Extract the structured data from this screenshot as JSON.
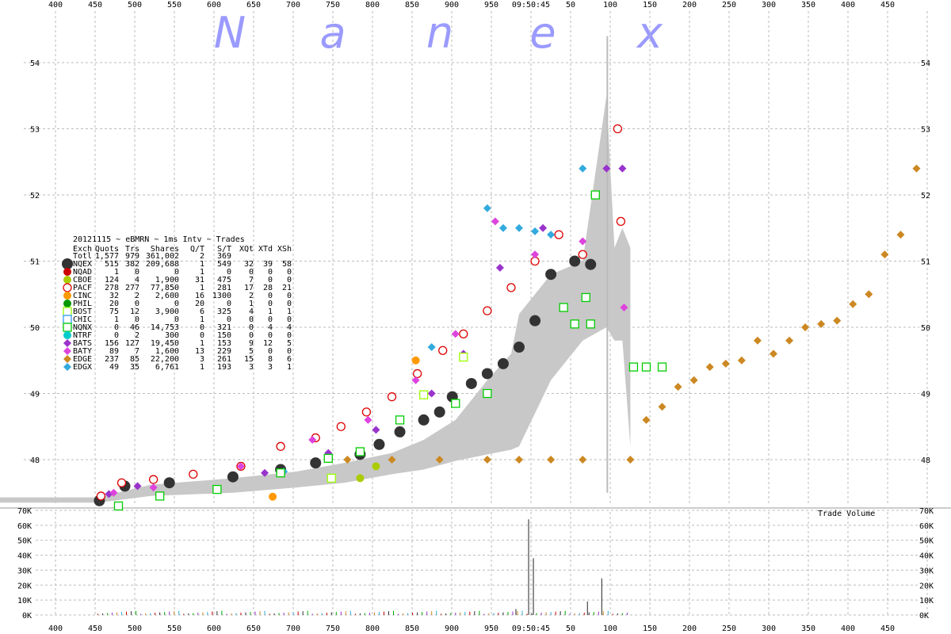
{
  "watermark": [
    "N",
    "a",
    "n",
    "e",
    "x"
  ],
  "chart_data": {
    "type": "scatter",
    "title_line": "20121115 ~ eBMRN ~ 1ms Intv ~ Trades",
    "time_axis": {
      "center_label": "09:50:45",
      "left_ticks": [
        "400",
        "450",
        "500",
        "550",
        "600",
        "650",
        "700",
        "750",
        "800",
        "850",
        "900",
        "950"
      ],
      "right_ticks": [
        "50",
        "100",
        "150",
        "200",
        "250",
        "300",
        "350",
        "400",
        "450"
      ]
    },
    "price_axis": {
      "ticks": [
        "48",
        "49",
        "50",
        "51",
        "52",
        "53",
        "54"
      ],
      "ylim": [
        47.4,
        54.5
      ]
    },
    "volume_axis": {
      "label": "Trade Volume",
      "ticks": [
        "0K",
        "10K",
        "20K",
        "30K",
        "40K",
        "50K",
        "60K",
        "70K"
      ],
      "ylim": [
        0,
        70000
      ]
    },
    "legend": {
      "header": [
        "Exch",
        "Quots",
        "Trs",
        "Shares",
        "Q/T",
        "S/T",
        "XQt",
        "XTd",
        "XSh"
      ],
      "total": [
        "Totl",
        "1,577",
        "979",
        "361,002",
        "2",
        "369",
        "",
        "",
        ""
      ],
      "rows": [
        {
          "exch": "NQEX",
          "quots": "515",
          "trs": "382",
          "shares": "209,688",
          "qt": "1",
          "st": "549",
          "xqt": "32",
          "xtd": "39",
          "xsh": "58",
          "color": "#333333",
          "marker": "circle-big"
        },
        {
          "exch": "NQAD",
          "quots": "1",
          "trs": "0",
          "shares": "0",
          "qt": "1",
          "st": "0",
          "xqt": "0",
          "xtd": "0",
          "xsh": "0",
          "color": "#cc0000",
          "marker": "dot"
        },
        {
          "exch": "CBOE",
          "quots": "124",
          "trs": "4",
          "shares": "1,900",
          "qt": "31",
          "st": "475",
          "xqt": "7",
          "xtd": "0",
          "xsh": "0",
          "color": "#aacc00",
          "marker": "dot"
        },
        {
          "exch": "PACF",
          "quots": "278",
          "trs": "277",
          "shares": "77,850",
          "qt": "1",
          "st": "281",
          "xqt": "17",
          "xtd": "28",
          "xsh": "21",
          "color": "#dd0000",
          "marker": "circle"
        },
        {
          "exch": "CINC",
          "quots": "32",
          "trs": "2",
          "shares": "2,600",
          "qt": "16",
          "st": "1300",
          "xqt": "2",
          "xtd": "0",
          "xsh": "0",
          "color": "#ff9900",
          "marker": "dot"
        },
        {
          "exch": "PHIL",
          "quots": "20",
          "trs": "0",
          "shares": "0",
          "qt": "20",
          "st": "0",
          "xqt": "1",
          "xtd": "0",
          "xsh": "0",
          "color": "#009900",
          "marker": "dot"
        },
        {
          "exch": "BOST",
          "quots": "75",
          "trs": "12",
          "shares": "3,900",
          "qt": "6",
          "st": "325",
          "xqt": "4",
          "xtd": "1",
          "xsh": "1",
          "color": "#99ff00",
          "marker": "square"
        },
        {
          "exch": "CHIC",
          "quots": "1",
          "trs": "0",
          "shares": "0",
          "qt": "1",
          "st": "0",
          "xqt": "0",
          "xtd": "0",
          "xsh": "0",
          "color": "#3399ff",
          "marker": "square"
        },
        {
          "exch": "NQNX",
          "quots": "0",
          "trs": "46",
          "shares": "14,753",
          "qt": "0",
          "st": "321",
          "xqt": "0",
          "xtd": "4",
          "xsh": "4",
          "color": "#00cc00",
          "marker": "square"
        },
        {
          "exch": "NTRF",
          "quots": "0",
          "trs": "2",
          "shares": "300",
          "qt": "0",
          "st": "150",
          "xqt": "0",
          "xtd": "0",
          "xsh": "0",
          "color": "#00cccc",
          "marker": "dot"
        },
        {
          "exch": "BATS",
          "quots": "156",
          "trs": "127",
          "shares": "19,450",
          "qt": "1",
          "st": "153",
          "xqt": "9",
          "xtd": "12",
          "xsh": "5",
          "color": "#9933cc",
          "marker": "diamond"
        },
        {
          "exch": "BATY",
          "quots": "89",
          "trs": "7",
          "shares": "1,600",
          "qt": "13",
          "st": "229",
          "xqt": "5",
          "xtd": "0",
          "xsh": "0",
          "color": "#dd44dd",
          "marker": "diamond"
        },
        {
          "exch": "EDGE",
          "quots": "237",
          "trs": "85",
          "shares": "22,200",
          "qt": "3",
          "st": "261",
          "xqt": "15",
          "xtd": "8",
          "xsh": "6",
          "color": "#cc8822",
          "marker": "diamond"
        },
        {
          "exch": "EDGX",
          "quots": "49",
          "trs": "35",
          "shares": "6,761",
          "qt": "1",
          "st": "193",
          "xqt": "3",
          "xtd": "3",
          "xsh": "1",
          "color": "#33aadd",
          "marker": "diamond"
        }
      ]
    },
    "nbbo_spread": [
      {
        "t": -550,
        "lo": 47.35,
        "hi": 47.43
      },
      {
        "t": -265,
        "lo": 47.35,
        "hi": 47.43
      },
      {
        "t": -232,
        "lo": 47.45,
        "hi": 47.62
      },
      {
        "t": -180,
        "lo": 47.5,
        "hi": 47.72
      },
      {
        "t": -140,
        "lo": 47.58,
        "hi": 47.82
      },
      {
        "t": -110,
        "lo": 47.65,
        "hi": 47.95
      },
      {
        "t": -80,
        "lo": 47.78,
        "hi": 48.1
      },
      {
        "t": -60,
        "lo": 47.85,
        "hi": 48.3
      },
      {
        "t": -40,
        "lo": 47.98,
        "hi": 48.6
      },
      {
        "t": -20,
        "lo": 48.08,
        "hi": 49.2
      },
      {
        "t": -5,
        "lo": 48.15,
        "hi": 49.6
      },
      {
        "t": 0,
        "lo": 48.2,
        "hi": 50.2
      },
      {
        "t": 20,
        "lo": 49.2,
        "hi": 50.8
      },
      {
        "t": 40,
        "lo": 49.8,
        "hi": 51.0
      },
      {
        "t": 55,
        "lo": 50.0,
        "hi": 53.5
      },
      {
        "t": 60,
        "lo": 49.8,
        "hi": 51.2
      },
      {
        "t": 65,
        "lo": 49.8,
        "hi": 51.5
      },
      {
        "t": 70,
        "lo": 48.2,
        "hi": 51.2
      }
    ],
    "halt_line": {
      "t": 55,
      "lo": 47.5,
      "hi": 54.4
    },
    "series": [
      {
        "name": "NQEX",
        "marker": "circle-big",
        "color": "#333333",
        "x": [
          -264,
          -248,
          -220,
          -180,
          -150,
          -128,
          -100,
          -88,
          -75,
          -60,
          -50,
          -42,
          -30,
          -20,
          -10,
          0,
          10,
          20,
          35,
          45
        ],
        "y": [
          47.38,
          47.6,
          47.65,
          47.74,
          47.85,
          47.95,
          48.08,
          48.23,
          48.42,
          48.6,
          48.72,
          48.95,
          49.15,
          49.3,
          49.45,
          49.7,
          50.1,
          50.8,
          51.0,
          50.95
        ]
      },
      {
        "name": "PACF",
        "marker": "circle",
        "color": "#dd0000",
        "x": [
          -263,
          -250,
          -230,
          -205,
          -175,
          -150,
          -128,
          -112,
          -96,
          -80,
          -64,
          -48,
          -35,
          -20,
          -5,
          10,
          25,
          40,
          62,
          64
        ],
        "y": [
          47.45,
          47.65,
          47.7,
          47.78,
          47.9,
          48.2,
          48.33,
          48.5,
          48.72,
          48.95,
          49.3,
          49.65,
          49.9,
          50.25,
          50.6,
          51.0,
          51.4,
          51.1,
          53.0,
          51.6
        ]
      },
      {
        "name": "BATS",
        "marker": "diamond",
        "color": "#9933cc",
        "x": [
          -258,
          -240,
          -160,
          -120,
          -90,
          -55,
          -35,
          -12,
          15,
          55,
          65
        ],
        "y": [
          47.48,
          47.6,
          47.8,
          48.1,
          48.45,
          49.0,
          49.6,
          50.9,
          51.5,
          52.4,
          52.4
        ]
      },
      {
        "name": "BATY",
        "marker": "diamond",
        "color": "#dd44dd",
        "x": [
          -255,
          -230,
          -175,
          -130,
          -95,
          -65,
          -40,
          -15,
          10,
          40,
          66
        ],
        "y": [
          47.5,
          47.58,
          47.9,
          48.3,
          48.6,
          49.2,
          49.9,
          51.6,
          51.1,
          51.3,
          50.3
        ]
      },
      {
        "name": "EDGX",
        "marker": "diamond",
        "color": "#33aadd",
        "x": [
          -148,
          -55,
          -20,
          -10,
          0,
          10,
          20,
          40
        ],
        "y": [
          47.82,
          49.7,
          51.8,
          51.5,
          51.5,
          51.45,
          51.4,
          52.4
        ]
      },
      {
        "name": "EDGE",
        "marker": "diamond",
        "color": "#cc8822",
        "x": [
          -108,
          -80,
          -50,
          -20,
          0,
          20,
          40,
          70,
          80,
          90,
          100,
          110,
          120,
          130,
          140,
          150,
          160,
          170,
          180,
          190,
          200,
          210,
          220,
          230,
          240,
          250
        ],
        "y": [
          48.0,
          48.0,
          48.0,
          48.0,
          48.0,
          48.0,
          48.0,
          48.0,
          48.6,
          48.8,
          49.1,
          49.2,
          49.4,
          49.45,
          49.5,
          49.8,
          49.6,
          49.8,
          50.0,
          50.05,
          50.1,
          50.35,
          50.5,
          51.1,
          51.4,
          52.4
        ]
      },
      {
        "name": "NQNX",
        "marker": "square",
        "color": "#00cc00",
        "x": [
          -252,
          -226,
          -190,
          -150,
          -120,
          -100,
          -75,
          -40,
          -20,
          28,
          35,
          42,
          45,
          48,
          72,
          80,
          90
        ],
        "y": [
          47.3,
          47.45,
          47.55,
          47.8,
          48.02,
          48.12,
          48.6,
          48.85,
          49.0,
          50.3,
          50.05,
          50.45,
          50.05,
          52.0,
          49.4,
          49.4,
          49.4
        ]
      },
      {
        "name": "BOST",
        "marker": "square",
        "color": "#99ff00",
        "x": [
          -118,
          -60,
          -35
        ],
        "y": [
          47.72,
          48.98,
          49.55
        ]
      },
      {
        "name": "CINC",
        "marker": "dot",
        "color": "#ff9900",
        "x": [
          -155,
          -65
        ],
        "y": [
          47.44,
          49.5
        ]
      },
      {
        "name": "CBOE",
        "marker": "dot",
        "color": "#aacc00",
        "x": [
          -100,
          -90
        ],
        "y": [
          47.72,
          47.9
        ]
      }
    ],
    "volume": {
      "spikes": [
        {
          "t": 6,
          "v": 64000
        },
        {
          "t": 9,
          "v": 38000
        },
        {
          "t": 52,
          "v": 24500
        },
        {
          "t": 43,
          "v": 9000
        },
        {
          "t": -2,
          "v": 4000
        }
      ],
      "small_range": [
        -265,
        70
      ]
    }
  }
}
